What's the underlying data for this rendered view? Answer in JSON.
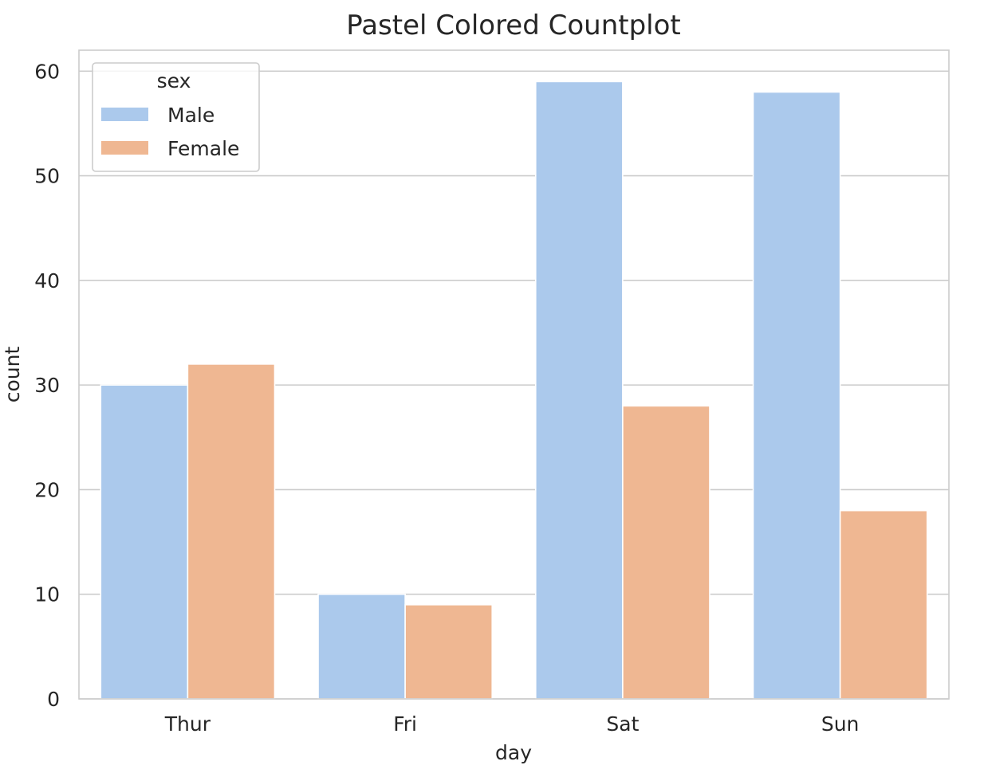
{
  "chart_data": {
    "type": "bar",
    "title": "Pastel Colored Countplot",
    "xlabel": "day",
    "ylabel": "count",
    "categories": [
      "Thur",
      "Fri",
      "Sat",
      "Sun"
    ],
    "series": [
      {
        "name": "Male",
        "values": [
          30,
          10,
          59,
          58
        ],
        "color": "#abc9ec"
      },
      {
        "name": "Female",
        "values": [
          32,
          9,
          28,
          18
        ],
        "color": "#efb792"
      }
    ],
    "ylim": [
      0,
      62
    ],
    "yticks": [
      0,
      10,
      20,
      30,
      40,
      50,
      60
    ],
    "grid": true,
    "legend": {
      "title": "sex",
      "placement": "top-left"
    }
  }
}
